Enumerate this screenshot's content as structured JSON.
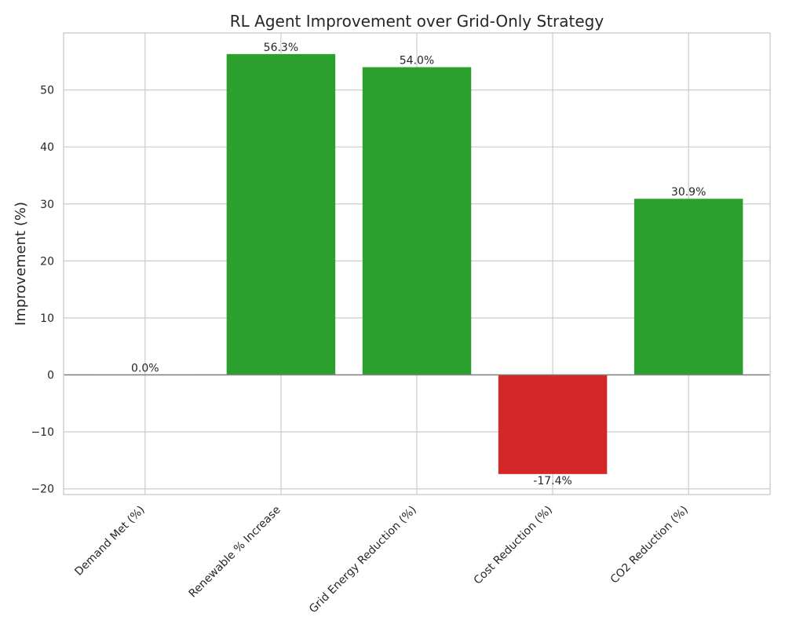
{
  "chart_data": {
    "type": "bar",
    "title": "RL Agent Improvement over Grid-Only Strategy",
    "xlabel": "",
    "ylabel": "Improvement (%)",
    "categories": [
      "Demand Met (%)",
      "Renewable % Increase",
      "Grid Energy Reduction (%)",
      "Cost Reduction (%)",
      "CO2 Reduction (%)"
    ],
    "values": [
      0.0,
      56.3,
      54.0,
      -17.4,
      30.9
    ],
    "data_labels": [
      "0.0%",
      "56.3%",
      "54.0%",
      "-17.4%",
      "30.9%"
    ],
    "ylim": [
      -21,
      60
    ],
    "yticks": [
      -20,
      -10,
      0,
      10,
      20,
      30,
      40,
      50
    ],
    "ytick_labels": [
      "−20",
      "−10",
      "0",
      "10",
      "20",
      "30",
      "40",
      "50"
    ],
    "grid": true,
    "zero_line": true,
    "colors": {
      "positive": "#2ca02c",
      "negative": "#d62728",
      "zero_line": "#808080",
      "grid": "#cccccc"
    }
  }
}
